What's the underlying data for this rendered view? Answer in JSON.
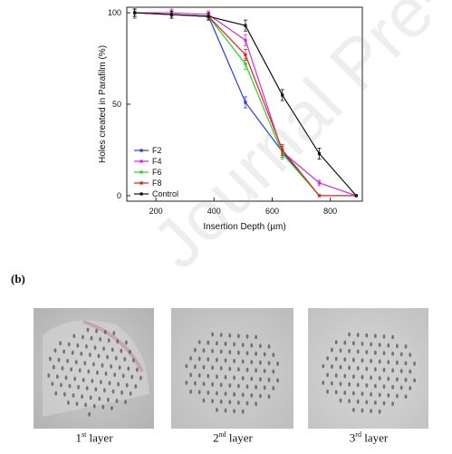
{
  "panel_label": "(b)",
  "watermark": "Journal Pre-proofs",
  "photos": [
    {
      "caption_num": "1",
      "caption_sup": "st",
      "caption_text": " layer"
    },
    {
      "caption_num": "2",
      "caption_sup": "nd",
      "caption_text": " layer"
    },
    {
      "caption_num": "3",
      "caption_sup": "rd",
      "caption_text": " layer"
    }
  ],
  "chart_data": {
    "type": "line",
    "title": "",
    "xlabel": "Insertion Depth (µm)",
    "ylabel": "Holes created in Parafilm (%)",
    "xlim": [
      100,
      910
    ],
    "ylim": [
      -3,
      103
    ],
    "xticks": [
      200,
      400,
      600,
      800
    ],
    "yticks": [
      0,
      50,
      100
    ],
    "legend": "lower-left",
    "x": [
      127,
      254,
      381,
      508,
      635,
      762,
      889
    ],
    "series": [
      {
        "name": "F2",
        "color": "#2b3fd6",
        "values": [
          100,
          99,
          98,
          51,
          24,
          0,
          0
        ],
        "errors": [
          3,
          2,
          2,
          3,
          3,
          0,
          0
        ]
      },
      {
        "name": "F4",
        "color": "#d42ad4",
        "values": [
          100,
          100,
          99,
          85,
          24,
          7,
          0
        ],
        "errors": [
          2,
          2,
          2,
          3,
          3,
          1.5,
          0
        ]
      },
      {
        "name": "F6",
        "color": "#27d427",
        "values": [
          100,
          99,
          98,
          72,
          23,
          0,
          0
        ],
        "errors": [
          2,
          2,
          2,
          3,
          3,
          0,
          0
        ]
      },
      {
        "name": "F8",
        "color": "#e02020",
        "values": [
          100,
          99,
          98,
          77,
          25,
          0,
          0
        ],
        "errors": [
          2,
          2,
          2,
          3,
          3,
          0,
          0
        ]
      },
      {
        "name": "Control",
        "color": "#111111",
        "values": [
          100,
          99,
          98,
          93,
          55,
          23,
          0
        ],
        "errors": [
          2,
          2,
          2,
          3,
          3,
          3,
          0
        ]
      }
    ]
  }
}
